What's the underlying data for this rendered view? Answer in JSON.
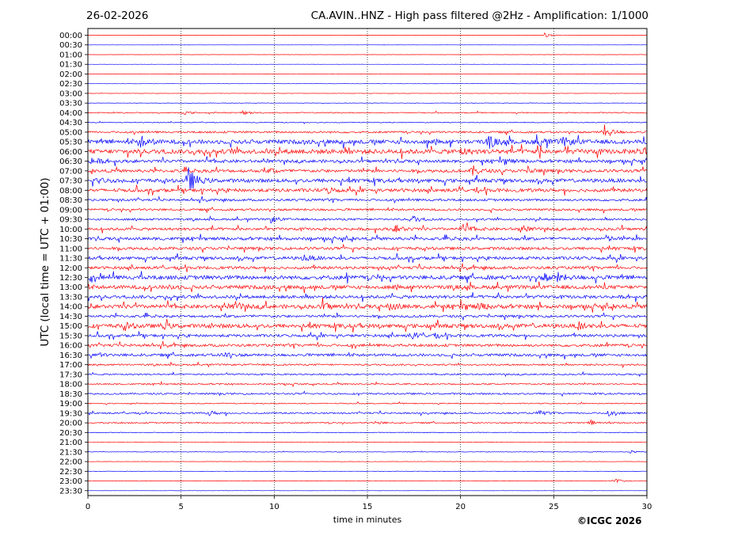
{
  "header": {
    "date": "26-02-2026",
    "title": "CA.AVIN..HNZ - High pass filtered @2Hz - Amplification: 1/1000"
  },
  "footer": {
    "copyright": "©ICGC 2026"
  },
  "chart_data": {
    "type": "line",
    "title": "CA.AVIN..HNZ - High pass filtered @2Hz - Amplification: 1/1000",
    "xlabel": "time in minutes",
    "ylabel": "UTC (local time = UTC + 01:00)",
    "xlim": [
      0,
      30
    ],
    "x_ticks": [
      0,
      5,
      10,
      15,
      20,
      25,
      30
    ],
    "vertical_grid": "dotted at 5, 10, 15, 20, 25 min",
    "trace_colors": [
      "#ff0000",
      "#0000ff"
    ],
    "rows": [
      "00:00",
      "00:30",
      "01:00",
      "01:30",
      "02:00",
      "02:30",
      "03:00",
      "03:30",
      "04:00",
      "04:30",
      "05:00",
      "05:30",
      "06:00",
      "06:30",
      "07:00",
      "07:30",
      "08:00",
      "08:30",
      "09:00",
      "09:30",
      "10:00",
      "10:30",
      "11:00",
      "11:30",
      "12:00",
      "12:30",
      "13:00",
      "13:30",
      "14:00",
      "14:30",
      "15:00",
      "15:30",
      "16:00",
      "16:30",
      "17:00",
      "17:30",
      "18:00",
      "18:30",
      "19:00",
      "19:30",
      "20:00",
      "20:30",
      "21:00",
      "21:30",
      "22:00",
      "22:30",
      "23:00",
      "23:30"
    ],
    "noise_level": [
      0.15,
      0.1,
      0.1,
      0.1,
      0.15,
      0.15,
      0.2,
      0.25,
      0.6,
      0.5,
      1.2,
      2.5,
      2.8,
      1.8,
      1.8,
      2.2,
      2.0,
      1.4,
      1.3,
      1.2,
      1.6,
      1.8,
      1.7,
      1.8,
      1.7,
      2.4,
      2.2,
      1.9,
      2.3,
      1.5,
      2.4,
      1.6,
      1.6,
      1.6,
      1.0,
      0.9,
      0.9,
      1.0,
      0.6,
      1.0,
      0.8,
      0.4,
      0.3,
      0.3,
      0.2,
      0.2,
      0.2,
      0.15
    ],
    "events": [
      {
        "row": "00:00",
        "minute": 24.5,
        "amplitude": 3
      },
      {
        "row": "04:00",
        "minute": 5.2,
        "amplitude": 2
      },
      {
        "row": "04:00",
        "minute": 8.3,
        "amplitude": 2.5
      },
      {
        "row": "05:00",
        "minute": 27.7,
        "amplitude": 9
      },
      {
        "row": "05:30",
        "minute": 2.8,
        "amplitude": 8
      },
      {
        "row": "05:30",
        "minute": 21.5,
        "amplitude": 6
      },
      {
        "row": "05:30",
        "minute": 24.1,
        "amplitude": 8
      },
      {
        "row": "05:30",
        "minute": 25.5,
        "amplitude": 5
      },
      {
        "row": "06:00",
        "minute": 20.0,
        "amplitude": 4
      },
      {
        "row": "06:00",
        "minute": 29.8,
        "amplitude": 5
      },
      {
        "row": "06:30",
        "minute": 0.2,
        "amplitude": 5
      },
      {
        "row": "06:30",
        "minute": 22.3,
        "amplitude": 4
      },
      {
        "row": "07:00",
        "minute": 9.8,
        "amplitude": 3
      },
      {
        "row": "07:00",
        "minute": 20.6,
        "amplitude": 7
      },
      {
        "row": "07:00",
        "minute": 23.6,
        "amplitude": 5
      },
      {
        "row": "07:30",
        "minute": 5.4,
        "amplitude": 16
      },
      {
        "row": "07:30",
        "minute": 0.4,
        "amplitude": 4
      },
      {
        "row": "08:00",
        "minute": 12.8,
        "amplitude": 4
      },
      {
        "row": "09:30",
        "minute": 9.8,
        "amplitude": 4
      },
      {
        "row": "09:30",
        "minute": 17.4,
        "amplitude": 5
      },
      {
        "row": "10:00",
        "minute": 16.5,
        "amplitude": 5
      },
      {
        "row": "10:00",
        "minute": 20.1,
        "amplitude": 6
      },
      {
        "row": "10:00",
        "minute": 23.2,
        "amplitude": 4
      },
      {
        "row": "10:30",
        "minute": 27.7,
        "amplitude": 4
      },
      {
        "row": "11:30",
        "minute": 11.6,
        "amplitude": 4
      },
      {
        "row": "12:30",
        "minute": 24.5,
        "amplitude": 5
      },
      {
        "row": "12:30",
        "minute": 25.2,
        "amplitude": 5
      },
      {
        "row": "13:00",
        "minute": 4.3,
        "amplitude": 3
      },
      {
        "row": "14:00",
        "minute": 7.9,
        "amplitude": 5
      },
      {
        "row": "14:00",
        "minute": 12.6,
        "amplitude": 4
      },
      {
        "row": "14:00",
        "minute": 16.2,
        "amplitude": 5
      },
      {
        "row": "14:00",
        "minute": 20.1,
        "amplitude": 4
      },
      {
        "row": "14:00",
        "minute": 21.0,
        "amplitude": 4
      },
      {
        "row": "15:00",
        "minute": 1.9,
        "amplitude": 4
      },
      {
        "row": "15:00",
        "minute": 4.0,
        "amplitude": 3
      },
      {
        "row": "15:00",
        "minute": 26.3,
        "amplitude": 4
      },
      {
        "row": "15:30",
        "minute": 17.4,
        "amplitude": 4
      },
      {
        "row": "15:30",
        "minute": 18.5,
        "amplitude": 3
      },
      {
        "row": "16:30",
        "minute": 7.3,
        "amplitude": 4
      },
      {
        "row": "16:30",
        "minute": 0.4,
        "amplitude": 3
      },
      {
        "row": "19:30",
        "minute": 6.5,
        "amplitude": 3
      },
      {
        "row": "19:30",
        "minute": 24.2,
        "amplitude": 3
      },
      {
        "row": "19:30",
        "minute": 27.9,
        "amplitude": 3
      },
      {
        "row": "20:00",
        "minute": 27.0,
        "amplitude": 3
      },
      {
        "row": "20:00",
        "minute": 15.4,
        "amplitude": 2.5
      },
      {
        "row": "21:30",
        "minute": 29.1,
        "amplitude": 2
      },
      {
        "row": "23:00",
        "minute": 28.3,
        "amplitude": 3
      }
    ]
  }
}
